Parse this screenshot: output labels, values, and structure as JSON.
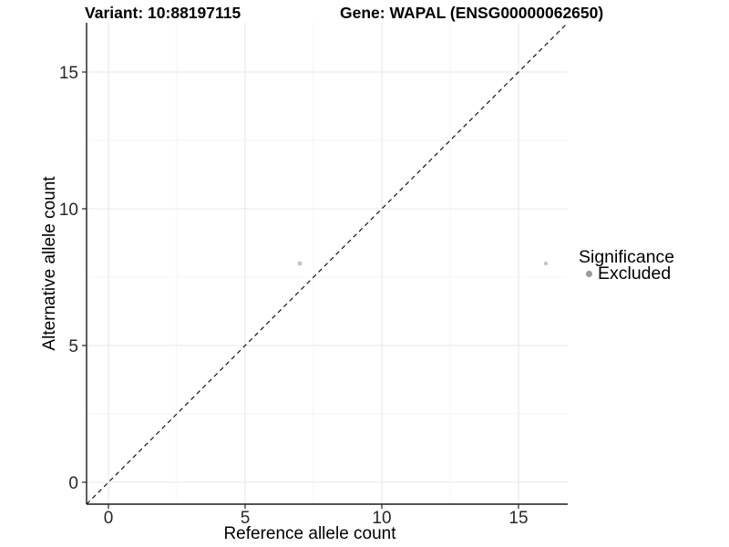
{
  "chart_data": {
    "type": "scatter",
    "title_left": "Variant: 10:88197115",
    "title_right": "Gene: WAPAL (ENSG00000062650)",
    "xlabel": "Reference allele count",
    "ylabel": "Alternative allele count",
    "xlim": [
      -0.8,
      16.8
    ],
    "ylim": [
      -0.8,
      16.8
    ],
    "xticks": [
      0,
      5,
      10,
      15
    ],
    "yticks": [
      0,
      5,
      10,
      15
    ],
    "minor_xticks": [
      2.5,
      7.5,
      12.5
    ],
    "minor_yticks": [
      2.5,
      7.5,
      12.5
    ],
    "grid": "major+minor",
    "reference_line": {
      "kind": "identity y=x",
      "linetype": "dashed",
      "color": "#111111",
      "from": [
        -0.8,
        -0.8
      ],
      "to": [
        16.8,
        16.8
      ]
    },
    "series": [
      {
        "name": "Excluded",
        "marker": "circle",
        "color": "#c3c3c3",
        "points": [
          {
            "x": 7,
            "y": 8,
            "r": 2.4
          },
          {
            "x": 16,
            "y": 8,
            "r": 2.0
          }
        ]
      }
    ],
    "legend": {
      "title": "Significance",
      "position": "right",
      "entries": [
        {
          "label": "Excluded",
          "marker": "circle",
          "color": "#9c9c9c"
        }
      ]
    },
    "colors": {
      "background": "#ffffff",
      "grid_major": "#e7e7e7",
      "grid_minor": "#f1f1f1",
      "axis_line": "#1a1a1a",
      "tick_mark": "#333333",
      "point_fill": "#c3c3c3",
      "legend_key_fill": "#9c9c9c"
    }
  }
}
